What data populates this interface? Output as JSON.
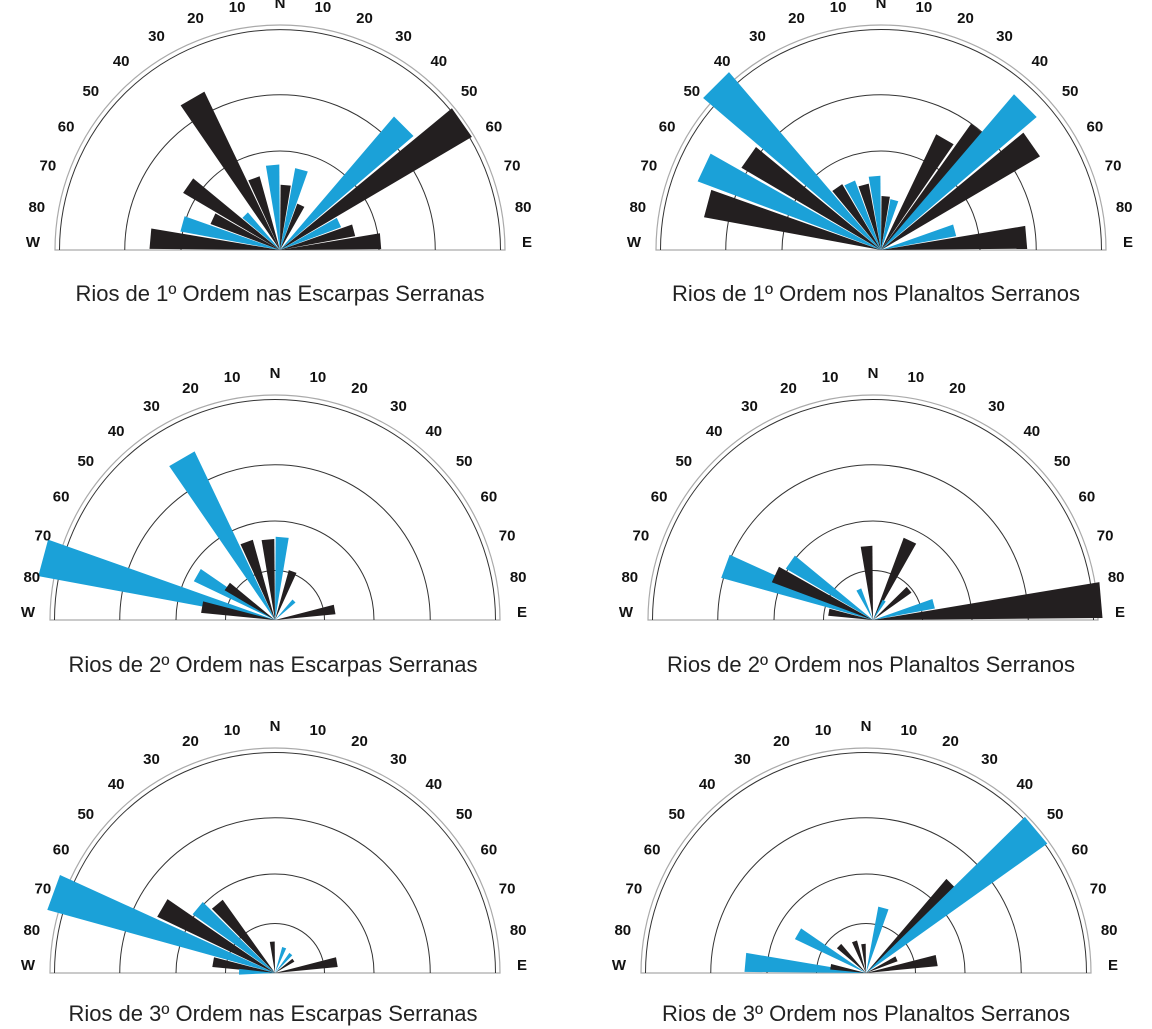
{
  "colors": {
    "black": "#231f20",
    "blue": "#1ba1d8",
    "ring": "#333333",
    "frame": "#aaaaaa"
  },
  "chart_data": [
    {
      "type": "rose",
      "title": "Rios de 1º Ordem nas Escarpas Serranas",
      "tick_labels_left": [
        "W",
        "80",
        "70",
        "60",
        "50",
        "40",
        "30",
        "20",
        "10"
      ],
      "center_label": "N",
      "tick_labels_right": [
        "10",
        "20",
        "30",
        "40",
        "50",
        "60",
        "70",
        "80",
        "E"
      ],
      "ring_levels": [
        0.44,
        0.69,
        0.98
      ],
      "petals": [
        {
          "dir": -85,
          "series": "black",
          "len": 0.58
        },
        {
          "dir": -75,
          "series": "blue",
          "len": 0.45
        },
        {
          "dir": -65,
          "series": "black",
          "len": 0.33
        },
        {
          "dir": -55,
          "series": "black",
          "len": 0.5
        },
        {
          "dir": -45,
          "series": "blue",
          "len": 0.22
        },
        {
          "dir": -30,
          "series": "black",
          "len": 0.78
        },
        {
          "dir": -20,
          "series": "black",
          "len": 0.34
        },
        {
          "dir": -5,
          "series": "blue",
          "len": 0.38
        },
        {
          "dir": 5,
          "series": "black",
          "len": 0.29
        },
        {
          "dir": 15,
          "series": "blue",
          "len": 0.37
        },
        {
          "dir": 25,
          "series": "black",
          "len": 0.22
        },
        {
          "dir": 45,
          "series": "blue",
          "len": 0.78
        },
        {
          "dir": 55,
          "series": "black",
          "len": 0.99
        },
        {
          "dir": 65,
          "series": "blue",
          "len": 0.29
        },
        {
          "dir": 75,
          "series": "black",
          "len": 0.34
        },
        {
          "dir": 85,
          "series": "black",
          "len": 0.45
        }
      ]
    },
    {
      "type": "rose",
      "title": "Rios de 1º Ordem nos Planaltos Serranos",
      "tick_labels_left": [
        "W",
        "80",
        "70",
        "60",
        "50",
        "40",
        "30",
        "20",
        "10"
      ],
      "center_label": "N",
      "tick_labels_right": [
        "10",
        "20",
        "30",
        "40",
        "50",
        "60",
        "70",
        "80",
        "E"
      ],
      "ring_levels": [
        0.44,
        0.69,
        0.98
      ],
      "petals": [
        {
          "dir": -75,
          "series": "black",
          "len": 0.8
        },
        {
          "dir": -65,
          "series": "blue",
          "len": 0.87
        },
        {
          "dir": -55,
          "series": "black",
          "len": 0.72
        },
        {
          "dir": -45,
          "series": "blue",
          "len": 1.04
        },
        {
          "dir": -35,
          "series": "black",
          "len": 0.34
        },
        {
          "dir": -25,
          "series": "blue",
          "len": 0.33
        },
        {
          "dir": -15,
          "series": "black",
          "len": 0.3
        },
        {
          "dir": -5,
          "series": "blue",
          "len": 0.33
        },
        {
          "dir": 5,
          "series": "black",
          "len": 0.24
        },
        {
          "dir": 15,
          "series": "blue",
          "len": 0.23
        },
        {
          "dir": 30,
          "series": "black",
          "len": 0.57
        },
        {
          "dir": 40,
          "series": "black",
          "len": 0.69
        },
        {
          "dir": 45,
          "series": "blue",
          "len": 0.91
        },
        {
          "dir": 55,
          "series": "black",
          "len": 0.82
        },
        {
          "dir": 75,
          "series": "blue",
          "len": 0.34
        },
        {
          "dir": 85,
          "series": "black",
          "len": 0.65
        }
      ]
    },
    {
      "type": "rose",
      "title": "Rios de 2º Ordem nas Escarpas Serranas",
      "tick_labels_left": [
        "W",
        "80",
        "70",
        "60",
        "50",
        "40",
        "30",
        "20",
        "10"
      ],
      "center_label": "N",
      "tick_labels_right": [
        "10",
        "20",
        "30",
        "40",
        "50",
        "60",
        "70",
        "80",
        "E"
      ],
      "ring_levels": [
        0.22,
        0.44,
        0.69,
        0.98
      ],
      "petals": [
        {
          "dir": -75,
          "series": "blue",
          "len": 1.07
        },
        {
          "dir": -80,
          "series": "black",
          "len": 0.33
        },
        {
          "dir": -60,
          "series": "blue",
          "len": 0.4
        },
        {
          "dir": -55,
          "series": "black",
          "len": 0.26
        },
        {
          "dir": -30,
          "series": "blue",
          "len": 0.83
        },
        {
          "dir": -20,
          "series": "black",
          "len": 0.37
        },
        {
          "dir": -5,
          "series": "black",
          "len": 0.36
        },
        {
          "dir": 5,
          "series": "blue",
          "len": 0.37
        },
        {
          "dir": 20,
          "series": "black",
          "len": 0.23
        },
        {
          "dir": 45,
          "series": "blue",
          "len": 0.12
        },
        {
          "dir": 80,
          "series": "black",
          "len": 0.27
        }
      ]
    },
    {
      "type": "rose",
      "title": "Rios de 2º Ordem nos Planaltos Serranos",
      "tick_labels_left": [
        "W",
        "80",
        "70",
        "60",
        "50",
        "40",
        "30",
        "20",
        "10"
      ],
      "center_label": "N",
      "tick_labels_right": [
        "10",
        "20",
        "30",
        "40",
        "50",
        "60",
        "70",
        "80",
        "E"
      ],
      "ring_levels": [
        0.22,
        0.44,
        0.69,
        0.98
      ],
      "petals": [
        {
          "dir": -70,
          "series": "blue",
          "len": 0.7
        },
        {
          "dir": -65,
          "series": "black",
          "len": 0.48
        },
        {
          "dir": -55,
          "series": "blue",
          "len": 0.45
        },
        {
          "dir": -80,
          "series": "black",
          "len": 0.2
        },
        {
          "dir": -25,
          "series": "blue",
          "len": 0.15
        },
        {
          "dir": -5,
          "series": "black",
          "len": 0.33
        },
        {
          "dir": 25,
          "series": "black",
          "len": 0.39
        },
        {
          "dir": 30,
          "series": "blue",
          "len": 0.1
        },
        {
          "dir": 50,
          "series": "black",
          "len": 0.21
        },
        {
          "dir": 75,
          "series": "blue",
          "len": 0.28
        },
        {
          "dir": 85,
          "series": "black",
          "len": 1.02
        }
      ]
    },
    {
      "type": "rose",
      "title": "Rios de 3º Ordem nas Escarpas Serranas",
      "tick_labels_left": [
        "W",
        "80",
        "70",
        "60",
        "50",
        "40",
        "30",
        "20",
        "10"
      ],
      "center_label": "N",
      "tick_labels_right": [
        "10",
        "20",
        "30",
        "40",
        "50",
        "60",
        "70",
        "80",
        "E"
      ],
      "ring_levels": [
        0.22,
        0.44,
        0.69,
        0.98
      ],
      "petals": [
        {
          "dir": -70,
          "series": "blue",
          "len": 1.05
        },
        {
          "dir": -60,
          "series": "black",
          "len": 0.58
        },
        {
          "dir": -50,
          "series": "blue",
          "len": 0.45
        },
        {
          "dir": -40,
          "series": "black",
          "len": 0.4
        },
        {
          "dir": -80,
          "series": "black",
          "len": 0.28
        },
        {
          "dir": -88,
          "series": "blue",
          "len": 0.16
        },
        {
          "dir": -5,
          "series": "black",
          "len": 0.14
        },
        {
          "dir": 20,
          "series": "blue",
          "len": 0.12
        },
        {
          "dir": 40,
          "series": "blue",
          "len": 0.11
        },
        {
          "dir": 55,
          "series": "black",
          "len": 0.1
        },
        {
          "dir": 80,
          "series": "black",
          "len": 0.28
        }
      ]
    },
    {
      "type": "rose",
      "title": "Rios de 3º Ordem nos Planaltos Serranos",
      "tick_labels_left": [
        "W",
        "80",
        "70",
        "60",
        "50",
        "40",
        "30",
        "20",
        "10"
      ],
      "center_label": "N",
      "tick_labels_right": [
        "10",
        "20",
        "30",
        "40",
        "50",
        "60",
        "70",
        "80",
        "E"
      ],
      "ring_levels": [
        0.22,
        0.44,
        0.69,
        0.98
      ],
      "petals": [
        {
          "dir": -85,
          "series": "blue",
          "len": 0.54
        },
        {
          "dir": -80,
          "series": "black",
          "len": 0.16
        },
        {
          "dir": -60,
          "series": "blue",
          "len": 0.35
        },
        {
          "dir": -45,
          "series": "black",
          "len": 0.17
        },
        {
          "dir": -20,
          "series": "black",
          "len": 0.15
        },
        {
          "dir": -5,
          "series": "black",
          "len": 0.13
        },
        {
          "dir": 15,
          "series": "blue",
          "len": 0.3
        },
        {
          "dir": 45,
          "series": "black",
          "len": 0.55
        },
        {
          "dir": 50,
          "series": "blue",
          "len": 0.99
        },
        {
          "dir": 65,
          "series": "black",
          "len": 0.15
        },
        {
          "dir": 80,
          "series": "black",
          "len": 0.32
        }
      ]
    }
  ]
}
